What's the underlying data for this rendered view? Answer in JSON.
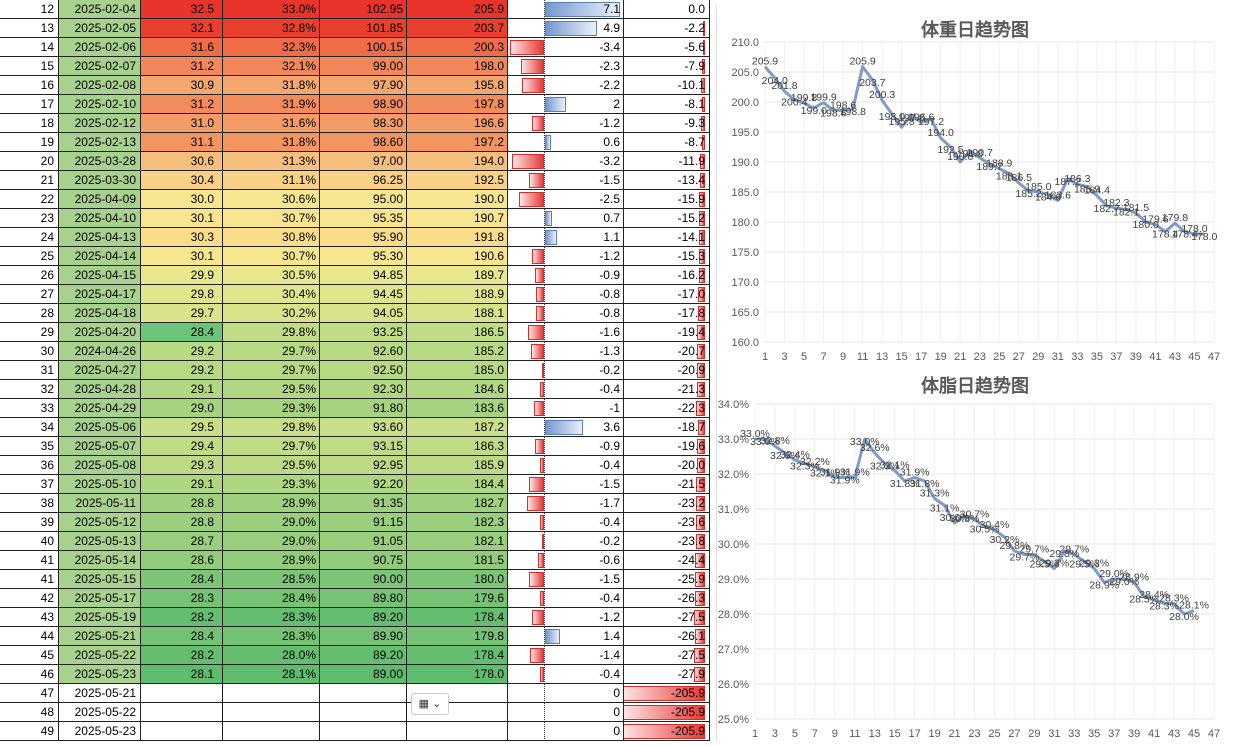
{
  "rows": [
    {
      "n": "12",
      "date": "2025-02-04",
      "c2": "32.5",
      "c3": "33.0%",
      "c4": "102.95",
      "c5": "205.9",
      "c7": "7.1",
      "c8": "0.0",
      "color": "#e8342b",
      "bar7": 7.1,
      "bar8": 0
    },
    {
      "n": "13",
      "date": "2025-02-05",
      "c2": "32.1",
      "c3": "32.8%",
      "c4": "101.85",
      "c5": "203.7",
      "c7": "4.9",
      "c8": "-2.2",
      "color": "#eb3f2e",
      "bar7": 4.9,
      "bar8": -2.2
    },
    {
      "n": "14",
      "date": "2025-02-06",
      "c2": "31.6",
      "c3": "32.3%",
      "c4": "100.15",
      "c5": "200.3",
      "c7": "-3.4",
      "c8": "-5.6",
      "color": "#ef6c47",
      "bar6": -3.4,
      "bar8": -5.6
    },
    {
      "n": "15",
      "date": "2025-02-07",
      "c2": "31.2",
      "c3": "32.1%",
      "c4": "99.00",
      "c5": "198.0",
      "c7": "-2.3",
      "c8": "-7.9",
      "color": "#f2875a",
      "bar6": -2.3,
      "bar8": -7.9
    },
    {
      "n": "16",
      "date": "2025-02-08",
      "c2": "30.9",
      "c3": "31.8%",
      "c4": "97.90",
      "c5": "195.8",
      "c7": "-2.2",
      "c8": "-10.1",
      "color": "#f4a76e",
      "bar6": -2.2,
      "bar8": -10.1
    },
    {
      "n": "17",
      "date": "2025-02-10",
      "c2": "31.2",
      "c3": "31.9%",
      "c4": "98.90",
      "c5": "197.8",
      "c7": "2",
      "c8": "-8.1",
      "color": "#f28c5d",
      "bar7": 2,
      "bar8": -8.1
    },
    {
      "n": "18",
      "date": "2025-02-12",
      "c2": "31.0",
      "c3": "31.6%",
      "c4": "98.30",
      "c5": "196.6",
      "c7": "-1.2",
      "c8": "-9.3",
      "color": "#f49c67",
      "bar6": -1.2,
      "bar8": -9.3
    },
    {
      "n": "19",
      "date": "2025-02-13",
      "c2": "31.1",
      "c3": "31.8%",
      "c4": "98.60",
      "c5": "197.2",
      "c7": "0.6",
      "c8": "-8.7",
      "color": "#f3955f",
      "bar7": 0.6,
      "bar8": -8.7
    },
    {
      "n": "20",
      "date": "2025-03-28",
      "c2": "30.6",
      "c3": "31.3%",
      "c4": "97.00",
      "c5": "194.0",
      "c7": "-3.2",
      "c8": "-11.9",
      "color": "#f6bf7d",
      "bar6": -3.2,
      "bar8": -11.9
    },
    {
      "n": "21",
      "date": "2025-03-30",
      "c2": "30.4",
      "c3": "31.1%",
      "c4": "96.25",
      "c5": "192.5",
      "c7": "-1.5",
      "c8": "-13.4",
      "color": "#f8d186",
      "bar6": -1.5,
      "bar8": -13.4
    },
    {
      "n": "22",
      "date": "2025-04-09",
      "c2": "30.0",
      "c3": "30.6%",
      "c4": "95.00",
      "c5": "190.0",
      "c7": "-2.5",
      "c8": "-15.9",
      "color": "#f6e690",
      "bar6": -2.5,
      "bar8": -15.9
    },
    {
      "n": "23",
      "date": "2025-04-10",
      "c2": "30.1",
      "c3": "30.7%",
      "c4": "95.35",
      "c5": "190.7",
      "c7": "0.7",
      "c8": "-15.2",
      "color": "#f9e58f",
      "bar7": 0.7,
      "bar8": -15.2
    },
    {
      "n": "24",
      "date": "2025-04-13",
      "c2": "30.3",
      "c3": "30.8%",
      "c4": "95.90",
      "c5": "191.8",
      "c7": "1.1",
      "c8": "-14.1",
      "color": "#f9dd8b",
      "bar7": 1.1,
      "bar8": -14.1
    },
    {
      "n": "25",
      "date": "2025-04-14",
      "c2": "30.1",
      "c3": "30.7%",
      "c4": "95.30",
      "c5": "190.6",
      "c7": "-1.2",
      "c8": "-15.3",
      "color": "#f8e68f",
      "bar6": -1.2,
      "bar8": -15.3
    },
    {
      "n": "26",
      "date": "2025-04-15",
      "c2": "29.9",
      "c3": "30.5%",
      "c4": "94.85",
      "c5": "189.7",
      "c7": "-0.9",
      "c8": "-16.2",
      "color": "#eae88f",
      "bar6": -0.9,
      "bar8": -16.2
    },
    {
      "n": "27",
      "date": "2025-04-17",
      "c2": "29.8",
      "c3": "30.4%",
      "c4": "94.45",
      "c5": "188.9",
      "c7": "-0.8",
      "c8": "-17.0",
      "color": "#e1e58c",
      "bar6": -0.8,
      "bar8": -17.0
    },
    {
      "n": "28",
      "date": "2025-04-18",
      "c2": "29.7",
      "c3": "30.2%",
      "c4": "94.05",
      "c5": "188.1",
      "c7": "-0.8",
      "c8": "-17.8",
      "color": "#d8e38a",
      "bar6": -0.8,
      "bar8": -17.8
    },
    {
      "n": "29",
      "date": "2025-04-20",
      "c2": "28.4",
      "c3": "29.8%",
      "c4": "93.25",
      "c5": "186.5",
      "c7": "-1.6",
      "c8": "-19.4",
      "color": "#c2dc86",
      "bar6": -1.6,
      "bar8": -19.4,
      "c2color": "#6cc479"
    },
    {
      "n": "30",
      "date": "2024-04-26",
      "c2": "29.2",
      "c3": "29.7%",
      "c4": "92.60",
      "c5": "185.2",
      "c7": "-1.3",
      "c8": "-20.7",
      "color": "#b9da84",
      "bar6": -1.3,
      "bar8": -20.7
    },
    {
      "n": "31",
      "date": "2025-04-27",
      "c2": "29.2",
      "c3": "29.7%",
      "c4": "92.50",
      "c5": "185.0",
      "c7": "-0.2",
      "c8": "-20.9",
      "color": "#b7d984",
      "bar6": -0.2,
      "bar8": -20.9
    },
    {
      "n": "32",
      "date": "2025-04-28",
      "c2": "29.1",
      "c3": "29.5%",
      "c4": "92.30",
      "c5": "184.6",
      "c7": "-0.4",
      "c8": "-21.3",
      "color": "#b2d782",
      "bar6": -0.4,
      "bar8": -21.3
    },
    {
      "n": "33",
      "date": "2025-04-29",
      "c2": "29.0",
      "c3": "29.3%",
      "c4": "91.80",
      "c5": "183.6",
      "c7": "-1",
      "c8": "-22.3",
      "color": "#a7d380",
      "bar6": -1,
      "bar8": -22.3
    },
    {
      "n": "34",
      "date": "2025-05-06",
      "c2": "29.5",
      "c3": "29.8%",
      "c4": "93.60",
      "c5": "187.2",
      "c7": "3.6",
      "c8": "-18.7",
      "color": "#c9de88",
      "bar7": 3.6,
      "bar8": -18.7
    },
    {
      "n": "35",
      "date": "2025-05-07",
      "c2": "29.4",
      "c3": "29.7%",
      "c4": "93.15",
      "c5": "186.3",
      "c7": "-0.9",
      "c8": "-19.6",
      "color": "#c0db86",
      "bar6": -0.9,
      "bar8": -19.6
    },
    {
      "n": "36",
      "date": "2025-05-08",
      "c2": "29.3",
      "c3": "29.5%",
      "c4": "92.95",
      "c5": "185.9",
      "c7": "-0.4",
      "c8": "-20.0",
      "color": "#bcda85",
      "bar6": -0.4,
      "bar8": -20.0
    },
    {
      "n": "37",
      "date": "2025-05-10",
      "c2": "29.1",
      "c3": "29.3%",
      "c4": "92.20",
      "c5": "184.4",
      "c7": "-1.5",
      "c8": "-21.5",
      "color": "#aed580",
      "bar6": -1.5,
      "bar8": -21.5
    },
    {
      "n": "38",
      "date": "2025-05-11",
      "c2": "28.8",
      "c3": "28.9%",
      "c4": "91.35",
      "c5": "182.7",
      "c7": "-1.7",
      "c8": "-23.2",
      "color": "#9ed07e",
      "bar6": -1.7,
      "bar8": -23.2
    },
    {
      "n": "39",
      "date": "2025-05-12",
      "c2": "28.8",
      "c3": "29.0%",
      "c4": "91.15",
      "c5": "182.3",
      "c7": "-0.4",
      "c8": "-23.6",
      "color": "#9acf7d",
      "bar6": -0.4,
      "bar8": -23.6
    },
    {
      "n": "40",
      "date": "2025-05-13",
      "c2": "28.7",
      "c3": "29.0%",
      "c4": "91.05",
      "c5": "182.1",
      "c7": "-0.2",
      "c8": "-23.8",
      "color": "#98ce7c",
      "bar6": -0.2,
      "bar8": -23.8
    },
    {
      "n": "41",
      "date": "2025-05-14",
      "c2": "28.6",
      "c3": "28.9%",
      "c4": "90.75",
      "c5": "181.5",
      "c7": "-0.6",
      "c8": "-24.4",
      "color": "#92cc7b",
      "bar6": -0.6,
      "bar8": -24.4
    },
    {
      "n": "41",
      "date": "2025-05-15",
      "c2": "28.4",
      "c3": "28.5%",
      "c4": "90.00",
      "c5": "180.0",
      "c7": "-1.5",
      "c8": "-25.9",
      "color": "#7cc576",
      "bar6": -1.5,
      "bar8": -25.9
    },
    {
      "n": "42",
      "date": "2025-05-17",
      "c2": "28.3",
      "c3": "28.4%",
      "c4": "89.80",
      "c5": "179.6",
      "c7": "-0.4",
      "c8": "-26.3",
      "color": "#76c374",
      "bar6": -0.4,
      "bar8": -26.3
    },
    {
      "n": "43",
      "date": "2025-05-19",
      "c2": "28.2",
      "c3": "28.3%",
      "c4": "89.20",
      "c5": "178.4",
      "c7": "-1.2",
      "c8": "-27.5",
      "color": "#65be70",
      "bar6": -1.2,
      "bar8": -27.5
    },
    {
      "n": "44",
      "date": "2025-05-21",
      "c2": "28.4",
      "c3": "28.3%",
      "c4": "89.90",
      "c5": "179.8",
      "c7": "1.4",
      "c8": "-26.1",
      "color": "#74c374",
      "bar7": 1.4,
      "bar8": -26.1
    },
    {
      "n": "45",
      "date": "2025-05-22",
      "c2": "28.2",
      "c3": "28.0%",
      "c4": "89.20",
      "c5": "178.4",
      "c7": "-1.4",
      "c8": "-27.5",
      "color": "#65be70",
      "bar6": -1.4,
      "bar8": -27.5
    },
    {
      "n": "46",
      "date": "2025-05-23",
      "c2": "28.1",
      "c3": "28.1%",
      "c4": "89.00",
      "c5": "178.0",
      "c7": "-0.4",
      "c8": "-27.9",
      "color": "#5fbc6e",
      "bar6": -0.4,
      "bar8": -27.9
    },
    {
      "n": "47",
      "date": "2025-05-21",
      "c2": "",
      "c3": "",
      "c4": "",
      "c5": "",
      "c7": "0",
      "c8": "-205.9",
      "color": "#ffffff",
      "bar8": -205.9
    },
    {
      "n": "48",
      "date": "2025-05-22",
      "c2": "",
      "c3": "",
      "c4": "",
      "c5": "",
      "c7": "0",
      "c8": "-205.9",
      "color": "#ffffff",
      "bar8": -205.9
    },
    {
      "n": "49",
      "date": "2025-05-23",
      "c2": "",
      "c3": "",
      "c4": "",
      "c5": "",
      "c7": "0",
      "c8": "-205.9",
      "color": "#ffffff",
      "bar8": -205.9
    }
  ],
  "paste_options_icon": "paste-options-icon",
  "chart_data": [
    {
      "type": "line",
      "title": "体重日趋势图",
      "ylim": [
        160,
        210
      ],
      "yticks": [
        "210.0",
        "205.0",
        "200.0",
        "195.0",
        "190.0",
        "185.0",
        "180.0",
        "175.0",
        "170.0",
        "165.0",
        "160.0"
      ],
      "xticks": [
        "1",
        "3",
        "5",
        "7",
        "9",
        "11",
        "13",
        "15",
        "17",
        "19",
        "21",
        "23",
        "25",
        "27",
        "29",
        "31",
        "33",
        "35",
        "37",
        "39",
        "41",
        "43",
        "45",
        "47"
      ],
      "values": [
        205.9,
        204.0,
        201.8,
        200.4,
        199.8,
        199.0,
        199.9,
        198.6,
        198.6,
        198.8,
        205.9,
        203.7,
        200.3,
        198.0,
        195.8,
        197.8,
        196.6,
        197.2,
        194.0,
        192.5,
        190.0,
        191.8,
        190.7,
        189.7,
        188.9,
        188.1,
        186.5,
        185.2,
        185.0,
        184.6,
        183.6,
        187.2,
        186.3,
        185.9,
        184.4,
        182.7,
        182.3,
        182.1,
        181.5,
        180.0,
        179.6,
        178.4,
        179.8,
        178.4,
        178.0,
        178.0
      ],
      "labels": [
        "205.9",
        "204.0",
        "201.8",
        "200.4",
        "199.8",
        "199.0",
        "199.9",
        "198.6",
        "198.6",
        "198.8",
        "205.9",
        "203.7",
        "200.3",
        "198.0",
        "195.8",
        "197.8",
        "196.6",
        "197.2",
        "194.0",
        "192.5",
        "190.0",
        "191.8",
        "190.7",
        "189.7",
        "188.9",
        "188.1",
        "186.5",
        "185.2",
        "185.0",
        "184.6",
        "183.6",
        "187.2",
        "186.3",
        "185.9",
        "184.4",
        "182.7",
        "182.3",
        "182.1",
        "181.5",
        "180.0",
        "179.6",
        "178.4",
        "179.8",
        "178.4",
        "178.0",
        "178.0"
      ],
      "color": "#7f9cc6"
    },
    {
      "type": "line",
      "title": "体脂日趋势图",
      "ylim": [
        25,
        34
      ],
      "yticks": [
        "34.0%",
        "33.0%",
        "32.0%",
        "31.0%",
        "30.0%",
        "29.0%",
        "28.0%",
        "27.0%",
        "26.0%",
        "25.0%"
      ],
      "xticks": [
        "1",
        "3",
        "5",
        "7",
        "9",
        "11",
        "13",
        "15",
        "17",
        "19",
        "21",
        "23",
        "25",
        "27",
        "29",
        "31",
        "33",
        "35",
        "37",
        "39",
        "41",
        "43",
        "45",
        "47"
      ],
      "values": [
        33.0,
        33.0,
        32.8,
        32.6,
        32.4,
        32.3,
        32.2,
        32.1,
        31.9,
        31.9,
        31.9,
        33.0,
        32.6,
        32.3,
        32.1,
        31.8,
        31.9,
        31.8,
        31.3,
        31.1,
        30.6,
        30.8,
        30.7,
        30.5,
        30.4,
        30.2,
        29.8,
        29.7,
        29.7,
        29.5,
        29.3,
        29.8,
        29.7,
        29.5,
        29.3,
        28.9,
        29.0,
        29.0,
        28.9,
        28.5,
        28.4,
        28.3,
        28.3,
        28.0,
        28.1
      ],
      "labels": [
        "33.0%",
        "33.0%",
        "32.8%",
        "32.6%",
        "32.4%",
        "32.3%",
        "32.2%",
        "32.1%",
        "31.9%",
        "31.9%",
        "31.9%",
        "33.0%",
        "32.6%",
        "32.3%",
        "32.1%",
        "31.8%",
        "31.9%",
        "31.8%",
        "31.3%",
        "31.1%",
        "30.6%",
        "30.8%",
        "30.7%",
        "30.5%",
        "30.4%",
        "30.2%",
        "29.8%",
        "29.7%",
        "29.7%",
        "29.5%",
        "29.3%",
        "29.8%",
        "29.7%",
        "29.5%",
        "29.3%",
        "28.9%",
        "29.0%",
        "29.0%",
        "28.9%",
        "28.5%",
        "28.4%",
        "28.3%",
        "28.3%",
        "28.0%",
        "28.1%"
      ],
      "color": "#7f9cc6"
    }
  ]
}
